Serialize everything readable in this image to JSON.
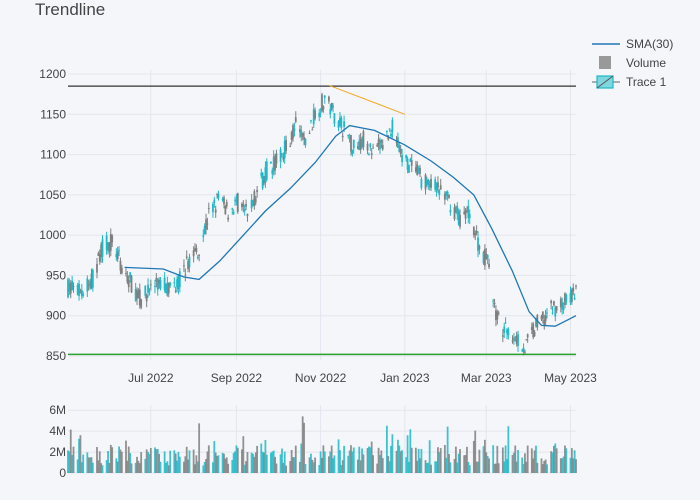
{
  "chart_data": {
    "type": "candlestick",
    "title": "Trendline",
    "x_ticks": [
      "Jul 2022",
      "Sep 2022",
      "Nov 2022",
      "Jan 2023",
      "Mar 2023",
      "May 2023"
    ],
    "x_tick_dates": [
      "2022-07-01",
      "2022-09-01",
      "2022-11-01",
      "2023-01-01",
      "2023-03-01",
      "2023-05-01"
    ],
    "date_range": [
      "2022-05-02",
      "2023-05-05"
    ],
    "price_axis": {
      "ticks": [
        850,
        900,
        950,
        1000,
        1050,
        1100,
        1150,
        1200
      ],
      "range": [
        845,
        1205
      ]
    },
    "volume_axis": {
      "ticks": [
        0,
        2000000,
        4000000,
        6000000
      ],
      "tick_labels": [
        "0",
        "2M",
        "4M",
        "6M"
      ],
      "range": [
        0,
        6500000
      ]
    },
    "legend": [
      "SMA(30)",
      "Volume",
      "Trace 1"
    ],
    "colors": {
      "up": "#1fb8c8",
      "down": "#7f7f7f",
      "sma": "#1f77b4",
      "resistance": "#333333",
      "support": "#2ca02c",
      "trendline": "#f5a623",
      "volume": "#999999"
    },
    "price_path": [
      [
        "2022-05-02",
        935
      ],
      [
        "2022-05-12",
        928
      ],
      [
        "2022-05-20",
        945
      ],
      [
        "2022-05-27",
        985
      ],
      [
        "2022-06-03",
        993
      ],
      [
        "2022-06-10",
        960
      ],
      [
        "2022-06-17",
        940
      ],
      [
        "2022-06-24",
        918
      ],
      [
        "2022-07-01",
        935
      ],
      [
        "2022-07-08",
        940
      ],
      [
        "2022-07-15",
        935
      ],
      [
        "2022-07-22",
        945
      ],
      [
        "2022-07-29",
        970
      ],
      [
        "2022-08-05",
        985
      ],
      [
        "2022-08-12",
        1025
      ],
      [
        "2022-08-19",
        1045
      ],
      [
        "2022-08-26",
        1030
      ],
      [
        "2022-09-02",
        1040
      ],
      [
        "2022-09-09",
        1025
      ],
      [
        "2022-09-16",
        1055
      ],
      [
        "2022-09-23",
        1080
      ],
      [
        "2022-09-30",
        1090
      ],
      [
        "2022-10-07",
        1110
      ],
      [
        "2022-10-14",
        1135
      ],
      [
        "2022-10-21",
        1115
      ],
      [
        "2022-10-28",
        1150
      ],
      [
        "2022-11-04",
        1170
      ],
      [
        "2022-11-11",
        1150
      ],
      [
        "2022-11-18",
        1130
      ],
      [
        "2022-11-25",
        1110
      ],
      [
        "2022-12-02",
        1120
      ],
      [
        "2022-12-09",
        1100
      ],
      [
        "2022-12-16",
        1115
      ],
      [
        "2022-12-23",
        1135
      ],
      [
        "2022-12-30",
        1095
      ],
      [
        "2023-01-06",
        1085
      ],
      [
        "2023-01-13",
        1070
      ],
      [
        "2023-01-20",
        1060
      ],
      [
        "2023-01-27",
        1055
      ],
      [
        "2023-02-03",
        1040
      ],
      [
        "2023-02-10",
        1020
      ],
      [
        "2023-02-17",
        1030
      ],
      [
        "2023-02-24",
        985
      ],
      [
        "2023-03-03",
        965
      ],
      [
        "2023-03-08",
        900
      ],
      [
        "2023-03-15",
        880
      ],
      [
        "2023-03-22",
        875
      ],
      [
        "2023-03-29",
        860
      ],
      [
        "2023-04-05",
        885
      ],
      [
        "2023-04-12",
        900
      ],
      [
        "2023-04-19",
        910
      ],
      [
        "2023-04-26",
        915
      ],
      [
        "2023-05-05",
        930
      ]
    ],
    "sma30": [
      [
        "2022-06-12",
        960
      ],
      [
        "2022-07-10",
        958
      ],
      [
        "2022-07-25",
        948
      ],
      [
        "2022-08-05",
        945
      ],
      [
        "2022-08-20",
        968
      ],
      [
        "2022-09-05",
        998
      ],
      [
        "2022-09-22",
        1030
      ],
      [
        "2022-10-10",
        1058
      ],
      [
        "2022-10-28",
        1090
      ],
      [
        "2022-11-12",
        1123
      ],
      [
        "2022-11-22",
        1136
      ],
      [
        "2022-12-10",
        1130
      ],
      [
        "2023-01-01",
        1112
      ],
      [
        "2023-01-20",
        1092
      ],
      [
        "2023-02-05",
        1072
      ],
      [
        "2023-02-20",
        1050
      ],
      [
        "2023-03-05",
        1008
      ],
      [
        "2023-03-20",
        955
      ],
      [
        "2023-04-01",
        905
      ],
      [
        "2023-04-10",
        888
      ],
      [
        "2023-04-20",
        887
      ],
      [
        "2023-05-05",
        900
      ]
    ],
    "resistance": {
      "value": 1185
    },
    "support": {
      "value": 852
    },
    "trendline": {
      "from": [
        "2022-11-07",
        1186
      ],
      "to": [
        "2023-01-01",
        1150
      ]
    }
  }
}
